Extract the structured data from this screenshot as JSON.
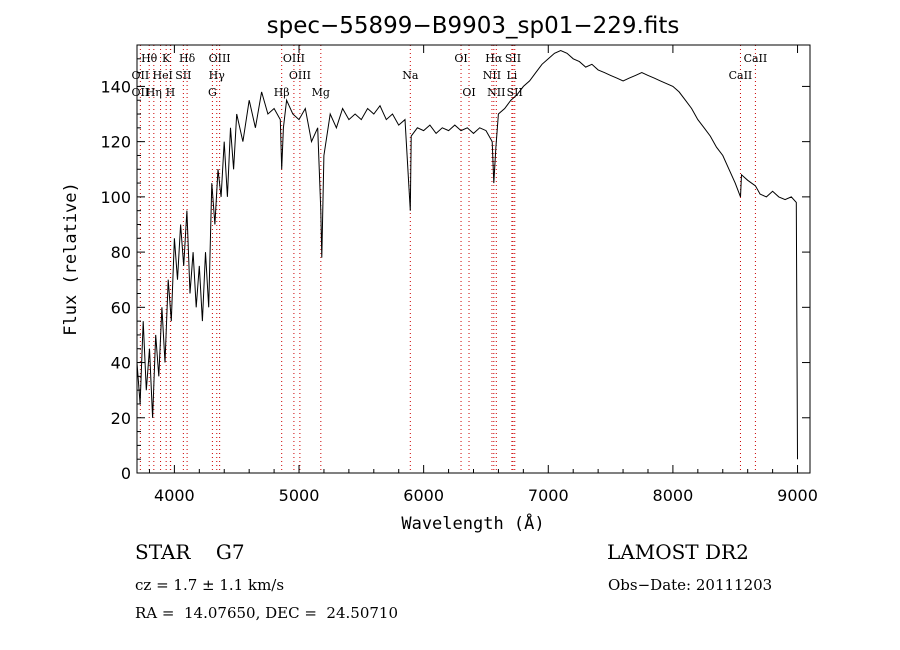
{
  "chart_data": {
    "type": "line",
    "title": "spec−55899−B9903_sp01−229.fits",
    "xlabel": "Wavelength (Å)",
    "ylabel": "Flux (relative)",
    "xlim": [
      3700,
      9100
    ],
    "ylim": [
      0,
      155
    ],
    "xticks": [
      4000,
      5000,
      6000,
      7000,
      8000,
      9000
    ],
    "yticks": [
      0,
      20,
      40,
      60,
      80,
      100,
      120,
      140
    ],
    "grid": false,
    "series": [
      {
        "x": [
          3700,
          3725,
          3750,
          3775,
          3800,
          3825,
          3850,
          3875,
          3900,
          3925,
          3950,
          3975,
          4000,
          4025,
          4050,
          4075,
          4100,
          4125,
          4150,
          4175,
          4200,
          4225,
          4250,
          4275,
          4300,
          4325,
          4350,
          4375,
          4400,
          4425,
          4450,
          4475,
          4500,
          4550,
          4600,
          4650,
          4700,
          4750,
          4800,
          4850,
          4861,
          4875,
          4900,
          4950,
          5000,
          5050,
          5100,
          5150,
          5175,
          5183,
          5200,
          5250,
          5300,
          5350,
          5400,
          5450,
          5500,
          5550,
          5600,
          5650,
          5700,
          5750,
          5800,
          5850,
          5893,
          5900,
          5950,
          6000,
          6050,
          6100,
          6150,
          6200,
          6250,
          6300,
          6350,
          6400,
          6450,
          6500,
          6550,
          6563,
          6580,
          6600,
          6650,
          6700,
          6750,
          6800,
          6850,
          6900,
          6950,
          7000,
          7050,
          7100,
          7150,
          7200,
          7250,
          7300,
          7350,
          7400,
          7450,
          7500,
          7550,
          7600,
          7650,
          7700,
          7750,
          7800,
          7850,
          7900,
          7950,
          8000,
          8050,
          8100,
          8150,
          8200,
          8250,
          8300,
          8350,
          8400,
          8450,
          8500,
          8542,
          8550,
          8600,
          8662,
          8700,
          8750,
          8800,
          8850,
          8900,
          8950,
          8990,
          9000
        ],
        "y": [
          40,
          25,
          55,
          30,
          45,
          20,
          50,
          35,
          60,
          40,
          70,
          55,
          85,
          70,
          90,
          75,
          95,
          65,
          80,
          60,
          75,
          55,
          80,
          60,
          105,
          90,
          110,
          100,
          120,
          100,
          125,
          110,
          130,
          120,
          135,
          125,
          138,
          130,
          132,
          128,
          110,
          125,
          135,
          130,
          128,
          132,
          120,
          125,
          95,
          78,
          115,
          130,
          125,
          132,
          128,
          130,
          128,
          132,
          130,
          133,
          128,
          130,
          126,
          128,
          95,
          122,
          125,
          124,
          126,
          123,
          125,
          124,
          126,
          124,
          125,
          123,
          125,
          124,
          120,
          105,
          118,
          130,
          132,
          135,
          137,
          140,
          142,
          145,
          148,
          150,
          152,
          153,
          152,
          150,
          149,
          147,
          148,
          146,
          145,
          144,
          143,
          142,
          143,
          144,
          145,
          144,
          143,
          142,
          141,
          140,
          138,
          135,
          132,
          128,
          125,
          122,
          118,
          115,
          110,
          105,
          100,
          108,
          106,
          104,
          101,
          100,
          102,
          100,
          99,
          100,
          98,
          5
        ],
        "note_color": "#000000"
      }
    ],
    "lines": [
      {
        "name": "Hθ",
        "x": 3798,
        "tier": 0
      },
      {
        "name": "K",
        "x": 3934,
        "tier": 0
      },
      {
        "name": "Hδ",
        "x": 4102,
        "tier": 0
      },
      {
        "name": "OIII",
        "x": 4363,
        "tier": 0
      },
      {
        "name": "OIII",
        "x": 4959,
        "tier": 0
      },
      {
        "name": "OI",
        "x": 6300,
        "tier": 0
      },
      {
        "name": "Hα",
        "x": 6563,
        "tier": 0
      },
      {
        "name": "SII",
        "x": 6717,
        "tier": 0
      },
      {
        "name": "CaII",
        "x": 8662,
        "tier": 0
      },
      {
        "name": "OII",
        "x": 3727,
        "tier": 1
      },
      {
        "name": "He",
        "x": 3889,
        "tier": 1
      },
      {
        "name": "I",
        "x": 3970,
        "tier": 1
      },
      {
        "name": "SII",
        "x": 4072,
        "tier": 1
      },
      {
        "name": "Hγ",
        "x": 4340,
        "tier": 1
      },
      {
        "name": "OIII",
        "x": 5007,
        "tier": 1
      },
      {
        "name": "Na",
        "x": 5893,
        "tier": 1
      },
      {
        "name": "NII",
        "x": 6548,
        "tier": 1
      },
      {
        "name": "Li",
        "x": 6708,
        "tier": 1
      },
      {
        "name": "CaII",
        "x": 8542,
        "tier": 1
      },
      {
        "name": "OII",
        "x": 3727,
        "tier": 2
      },
      {
        "name": "Hη",
        "x": 3835,
        "tier": 2
      },
      {
        "name": "H",
        "x": 3968,
        "tier": 2
      },
      {
        "name": "G",
        "x": 4305,
        "tier": 2
      },
      {
        "name": "Hβ",
        "x": 4861,
        "tier": 2
      },
      {
        "name": "Mg",
        "x": 5175,
        "tier": 2
      },
      {
        "name": "OI",
        "x": 6364,
        "tier": 2
      },
      {
        "name": "NII",
        "x": 6583,
        "tier": 2
      },
      {
        "name": "SII",
        "x": 6731,
        "tier": 2
      }
    ],
    "vline_color": "#cc0000"
  },
  "info": {
    "class": "STAR    G7",
    "survey": "LAMOST DR2",
    "cz": "cz = 1.7 ± 1.1 km/s",
    "obsdate": "Obs−Date: 20111203",
    "radec": "RA =  14.07650, DEC =  24.50710"
  }
}
